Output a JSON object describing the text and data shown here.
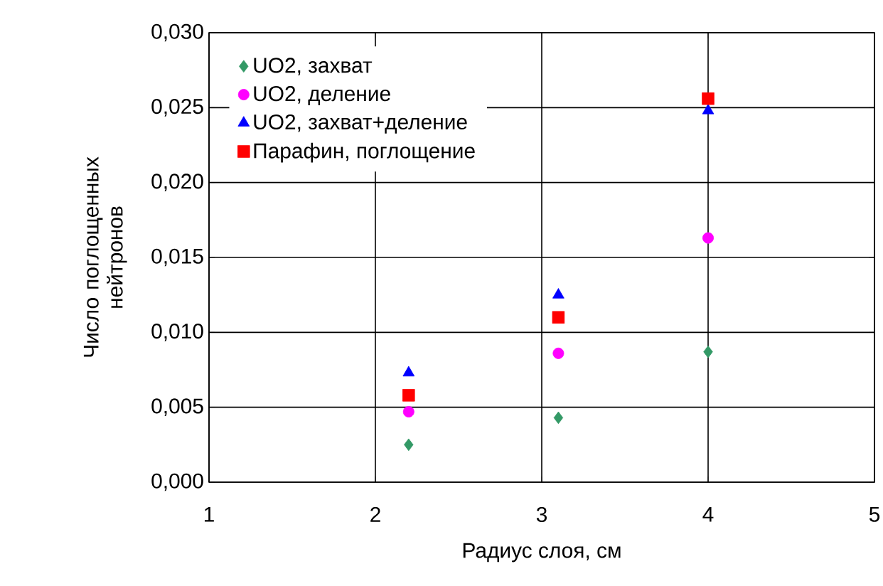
{
  "chart_data": {
    "type": "scatter",
    "xlabel": "Радиус  слоя, см",
    "ylabel": "Число поглощенных нейтронов",
    "xlim": [
      1,
      5
    ],
    "xticks": [
      1,
      2,
      3,
      4,
      5
    ],
    "ylim": [
      0,
      0.03
    ],
    "yticks": [
      {
        "value": 0,
        "label": "0,000"
      },
      {
        "value": 0.005,
        "label": "0,005"
      },
      {
        "value": 0.01,
        "label": "0,010"
      },
      {
        "value": 0.015,
        "label": "0,015"
      },
      {
        "value": 0.02,
        "label": "0,020"
      },
      {
        "value": 0.025,
        "label": "0,025"
      },
      {
        "value": 0.03,
        "label": "0,030"
      }
    ],
    "grid": true,
    "legend": "top left",
    "series": [
      {
        "name": "UO2, захват",
        "color": "#339966",
        "marker": "diamond",
        "x": [
          2.2,
          3.1,
          4.0
        ],
        "values": [
          0.0025,
          0.0043,
          0.0087
        ]
      },
      {
        "name": "UO2, деление",
        "color": "#ff00ff",
        "marker": "circle",
        "x": [
          2.2,
          3.1,
          4.0
        ],
        "values": [
          0.0047,
          0.0086,
          0.0163
        ]
      },
      {
        "name": "UO2, захват+деление",
        "color": "#0000ff",
        "marker": "triangle",
        "x": [
          2.2,
          3.1,
          4.0
        ],
        "values": [
          0.0073,
          0.0125,
          0.0248
        ]
      },
      {
        "name": "Парафин, поглощение",
        "color": "#ff0000",
        "marker": "square",
        "x": [
          2.2,
          3.1,
          4.0
        ],
        "values": [
          0.0058,
          0.011,
          0.0256
        ]
      }
    ]
  }
}
